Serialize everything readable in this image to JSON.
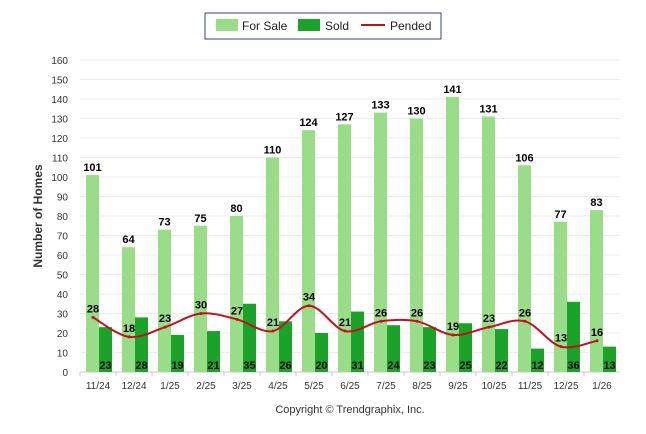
{
  "chart_data": {
    "type": "bar",
    "title": "",
    "xlabel": "",
    "ylabel": "Number of Homes",
    "ylim": [
      0,
      160
    ],
    "yticks": [
      0,
      10,
      20,
      30,
      40,
      50,
      60,
      70,
      80,
      90,
      100,
      110,
      120,
      130,
      140,
      150,
      160
    ],
    "categories": [
      "11/24",
      "12/24",
      "1/25",
      "2/25",
      "3/25",
      "4/25",
      "5/25",
      "6/25",
      "7/25",
      "8/25",
      "9/25",
      "10/25",
      "11/25",
      "12/25",
      "1/26"
    ],
    "series": [
      {
        "name": "For Sale",
        "type": "bar",
        "color": "#99dd88",
        "values": [
          101,
          64,
          73,
          75,
          80,
          110,
          124,
          127,
          133,
          130,
          141,
          131,
          106,
          77,
          83
        ]
      },
      {
        "name": "Sold",
        "type": "bar",
        "color": "#1aa328",
        "values": [
          23,
          28,
          19,
          21,
          35,
          26,
          20,
          31,
          24,
          23,
          25,
          22,
          12,
          36,
          13
        ]
      },
      {
        "name": "Pended",
        "type": "line",
        "color": "#c0121d",
        "values": [
          28,
          18,
          23,
          30,
          27,
          21,
          34,
          21,
          26,
          26,
          19,
          23,
          26,
          13,
          16
        ]
      }
    ],
    "legend_position": "top-center",
    "grid": true
  },
  "footer": {
    "credit": "Copyright © Trendgraphix, Inc."
  }
}
